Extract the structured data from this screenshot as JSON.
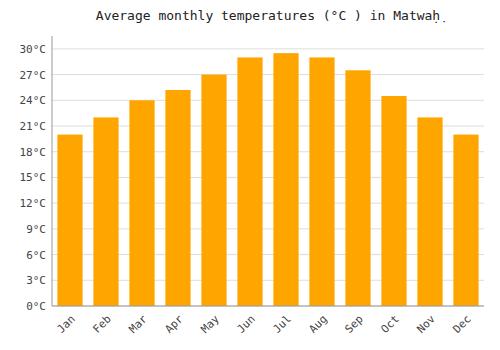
{
  "chart_data": {
    "type": "bar",
    "title": "Average monthly temperatures (°C ) in Matwaḥ̣",
    "categories": [
      "Jan",
      "Feb",
      "Mar",
      "Apr",
      "May",
      "Jun",
      "Jul",
      "Aug",
      "Sep",
      "Oct",
      "Nov",
      "Dec"
    ],
    "values": [
      20.0,
      22.0,
      24.0,
      25.2,
      27.0,
      29.0,
      29.5,
      29.0,
      27.5,
      24.5,
      22.0,
      20.0
    ],
    "color": "#FFA500",
    "ylim": [
      0,
      31.5
    ],
    "yticks": [
      {
        "value": 0,
        "label": "0°C"
      },
      {
        "value": 3,
        "label": "3°C"
      },
      {
        "value": 6,
        "label": "6°C"
      },
      {
        "value": 9,
        "label": "9°C"
      },
      {
        "value": 12,
        "label": "12°C"
      },
      {
        "value": 15,
        "label": "15°C"
      },
      {
        "value": 18,
        "label": "18°C"
      },
      {
        "value": 21,
        "label": "21°C"
      },
      {
        "value": 24,
        "label": "24°C"
      },
      {
        "value": 27,
        "label": "27°C"
      },
      {
        "value": 30,
        "label": "30°C"
      }
    ],
    "grid": true
  }
}
